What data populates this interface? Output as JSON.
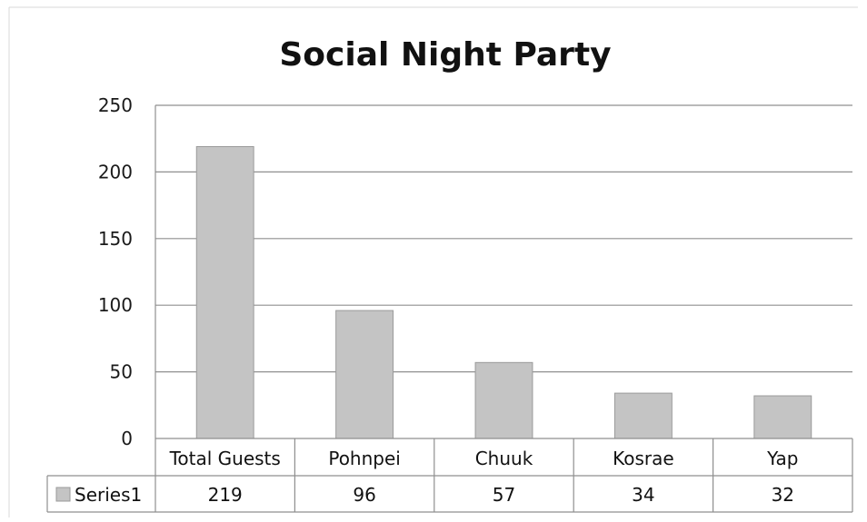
{
  "chart_data": {
    "type": "bar",
    "title": "Social Night Party",
    "categories": [
      "Total Guests",
      "Pohnpei",
      "Chuuk",
      "Kosrae",
      "Yap"
    ],
    "series": [
      {
        "name": "Series1",
        "values": [
          219,
          96,
          57,
          34,
          32
        ]
      }
    ],
    "value_labels": [
      "219",
      "96",
      "57",
      "34",
      "32"
    ],
    "ylim": [
      0,
      250
    ],
    "yticks": [
      0,
      50,
      100,
      150,
      200,
      250
    ],
    "ytick_labels": [
      "0",
      "50",
      "100",
      "150",
      "200",
      "250"
    ],
    "grid": true,
    "legend": "data-table-left",
    "colors": {
      "bar": "#c4c4c4",
      "bar_edge": "#9a9a9a",
      "grid": "#8f8f8f"
    }
  }
}
